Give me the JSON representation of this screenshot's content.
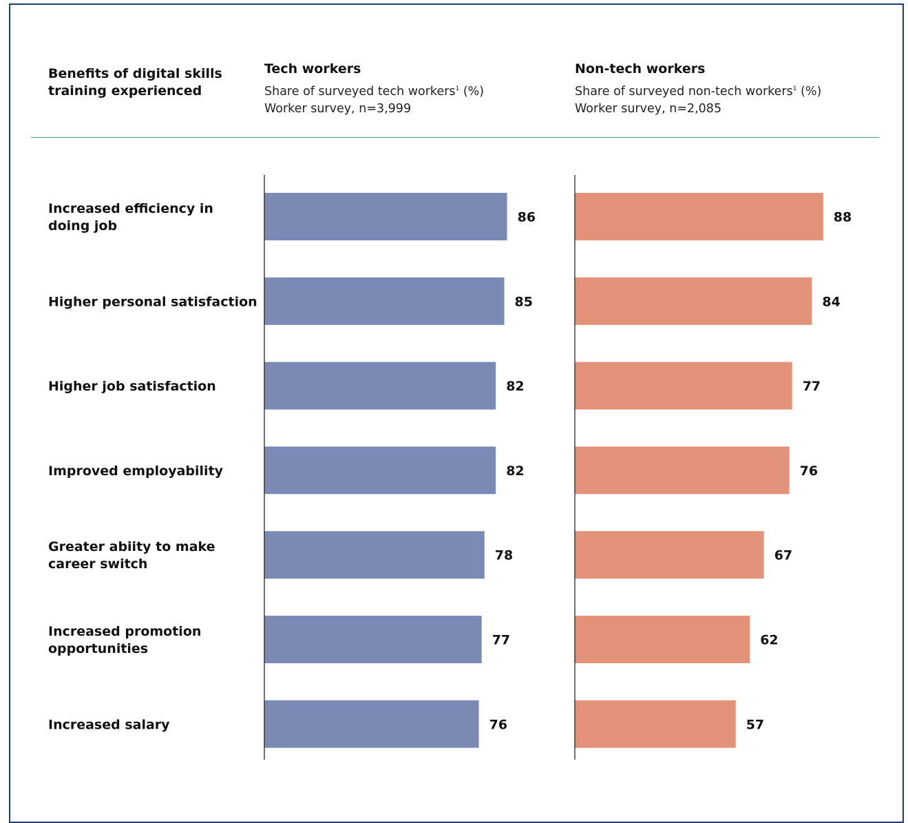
{
  "header": {
    "category_title": "Benefits of digital skills training experienced",
    "panels": [
      {
        "title": "Tech workers",
        "subtitle_pre": "Share of surveyed tech workers",
        "subtitle_sup": "1",
        "subtitle_post": " (%)",
        "survey": "Worker survey, n=3,999"
      },
      {
        "title": "Non-tech workers",
        "subtitle_pre": "Share of surveyed non-tech workers",
        "subtitle_sup": "1",
        "subtitle_post": " (%)",
        "survey": "Worker survey, n=2,085"
      }
    ]
  },
  "colors": {
    "tech": "#7a8ab5",
    "nontech": "#e3927a",
    "frame": "#1f3b73",
    "rule": "#3aa392"
  },
  "chart_data": {
    "type": "bar",
    "orientation": "horizontal",
    "categories": [
      "Increased efficiency in doing job",
      "Higher personal satisfaction",
      "Higher job satisfaction",
      "Improved employability",
      "Greater abiity to make career switch",
      "Increased promotion opportunities",
      "Increased salary"
    ],
    "category_lines": [
      [
        "Increased efficiency in",
        "doing job"
      ],
      [
        "Higher personal satisfaction"
      ],
      [
        "Higher job satisfaction"
      ],
      [
        "Improved employability"
      ],
      [
        "Greater abiity to make",
        "career switch"
      ],
      [
        "Increased promotion",
        "opportunities"
      ],
      [
        "Increased salary"
      ]
    ],
    "series": [
      {
        "name": "Tech workers",
        "values": [
          86,
          85,
          82,
          82,
          78,
          77,
          76
        ]
      },
      {
        "name": "Non-tech workers",
        "values": [
          88,
          84,
          77,
          76,
          67,
          62,
          57
        ]
      }
    ],
    "xlim": [
      0,
      100
    ],
    "grid": false,
    "legend": "none"
  }
}
